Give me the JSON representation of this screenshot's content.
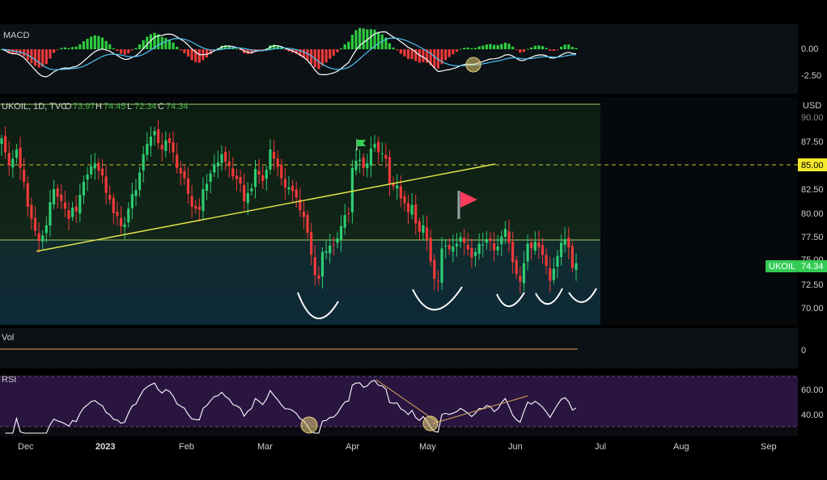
{
  "colors": {
    "background": "#000000",
    "panel": "#0c1318",
    "up": "#26a69a",
    "up_bright": "#2ecc40",
    "down": "#ef3a3a",
    "ma_white": "#ffffff",
    "ma_blue": "#4fc3f7",
    "support": "#9ccc65",
    "trendline": "#e8e84a",
    "rsi_bg": "#2a1440",
    "level_label_bg": "#f6e92a",
    "price_label_bg": "#33cc55",
    "vol_line": "#e6a24b",
    "annotation_circle": "#e8d27a"
  },
  "macd": {
    "title": "MACD",
    "ticks": [
      "0.00",
      "-2.50"
    ]
  },
  "price": {
    "header_symbol": "UKOIL, 1D, TVC",
    "header_open": "O",
    "header_open_val": "73.97",
    "header_high": "H",
    "header_high_val": "74.45",
    "header_low": "L",
    "header_low_val": "72.34",
    "header_close": "C",
    "header_close_val": "74.34",
    "currency": "USD",
    "ticks": [
      "90.00",
      "87.50",
      "82.50",
      "80.00",
      "77.50",
      "75.00",
      "72.50",
      "70.00"
    ],
    "level_label": "85.00",
    "symbol_label": "UKOIL",
    "last_price": "74.34"
  },
  "volume": {
    "title": "Vol",
    "tick": "0"
  },
  "rsi": {
    "title": "RSI",
    "ticks": [
      "60.00",
      "40.00"
    ]
  },
  "x_axis": [
    "Dec",
    "2023",
    "Feb",
    "Mar",
    "Apr",
    "May",
    "Jun",
    "Jul",
    "Aug",
    "Sep"
  ],
  "chart_data": {
    "type": "candlestick",
    "symbol": "UKOIL",
    "timeframe": "1D",
    "x_range": [
      "Dec 2022",
      "Sep 2023"
    ],
    "y_range": [
      68.5,
      91.5
    ],
    "horizontal_levels": [
      91.5,
      85.0,
      77.0
    ],
    "trendline": [
      [
        84.2,
        75.5
      ],
      [
        101.2,
        85.0
      ]
    ],
    "closes": [
      87.8,
      86.3,
      84.9,
      85.6,
      86.6,
      84.6,
      83.1,
      80.4,
      79.1,
      77.8,
      76.7,
      77.3,
      78.4,
      80.9,
      82.3,
      81.5,
      81.0,
      80.2,
      79.1,
      80.3,
      79.9,
      81.7,
      83.1,
      83.9,
      84.8,
      85.1,
      84.3,
      83.8,
      81.9,
      81.2,
      79.7,
      79.4,
      78.3,
      78.5,
      80.2,
      81.8,
      82.2,
      84.1,
      86.1,
      87.2,
      88.0,
      88.6,
      87.3,
      86.6,
      87.6,
      87.3,
      86.3,
      84.6,
      84.0,
      83.5,
      81.8,
      80.4,
      80.2,
      80.1,
      82.3,
      82.9,
      84.0,
      85.0,
      85.2,
      86.1,
      85.3,
      84.8,
      83.7,
      83.4,
      82.9,
      81.0,
      81.9,
      82.4,
      84.5,
      83.9,
      83.2,
      84.4,
      86.6,
      85.6,
      84.7,
      83.5,
      82.5,
      82.5,
      82.1,
      81.4,
      80.0,
      79.3,
      77.6,
      75.2,
      73.0,
      72.6,
      75.5,
      75.6,
      76.2,
      76.3,
      77.0,
      78.3,
      79.5,
      79.7,
      84.6,
      85.4,
      85.5,
      84.6,
      85.1,
      86.7,
      87.2,
      86.3,
      86.2,
      85.6,
      82.8,
      82.6,
      82.7,
      81.3,
      80.8,
      79.8,
      80.6,
      78.6,
      77.7,
      78.4,
      76.9,
      74.5,
      72.6,
      72.3,
      75.9,
      76.2,
      75.8,
      76.1,
      76.4,
      77.1,
      76.5,
      75.8,
      74.9,
      75.5,
      76.4,
      76.3,
      76.9,
      76.7,
      75.7,
      76.1,
      77.2,
      78.0,
      76.5,
      74.4,
      73.1,
      72.3,
      74.3,
      76.4,
      75.9,
      76.6,
      76.0,
      75.2,
      74.0,
      72.4,
      73.7,
      75.1,
      76.5,
      76.9,
      76.0,
      73.8,
      74.3
    ],
    "annotations": {
      "flags": 2,
      "bottom_arcs": 5,
      "circles": 4
    }
  }
}
